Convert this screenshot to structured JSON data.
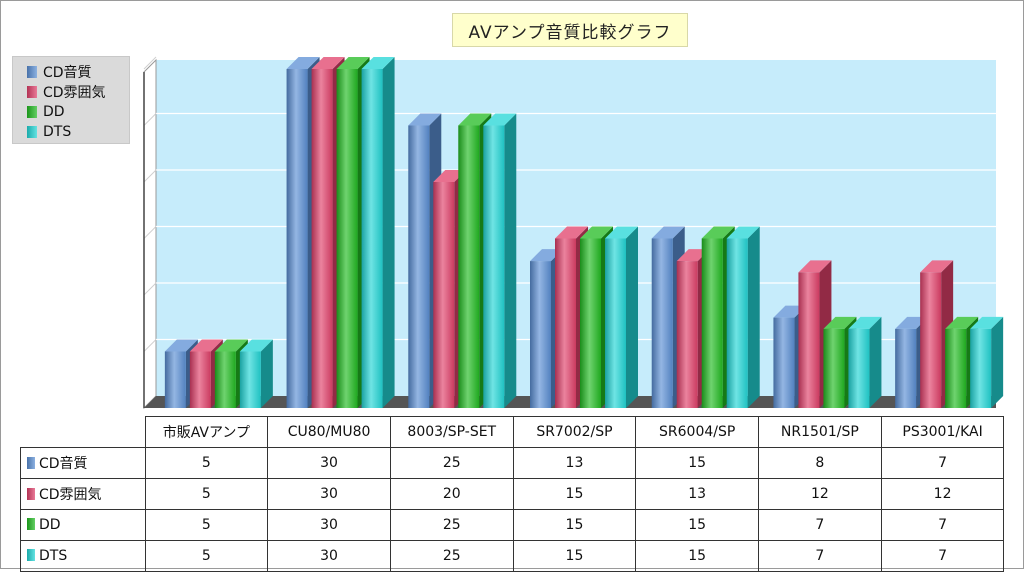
{
  "chart_data": {
    "type": "bar",
    "title": "AVアンプ音質比較グラフ",
    "categories": [
      "市販AVアンプ",
      "CU80/MU80",
      "8003/SP-SET",
      "SR7002/SP",
      "SR6004/SP",
      "NR1501/SP",
      "PS3001/KAI"
    ],
    "series": [
      {
        "name": "CD音質",
        "color": "#5b8fd4",
        "values": [
          5,
          30,
          25,
          13,
          15,
          8,
          7
        ]
      },
      {
        "name": "CD雰囲気",
        "color": "#e0406a",
        "values": [
          5,
          30,
          20,
          15,
          13,
          12,
          12
        ]
      },
      {
        "name": "DD",
        "color": "#22bb22",
        "values": [
          5,
          30,
          25,
          15,
          15,
          7,
          7
        ]
      },
      {
        "name": "DTS",
        "color": "#22d6d6",
        "values": [
          5,
          30,
          25,
          15,
          15,
          7,
          7
        ]
      }
    ],
    "ylim": [
      0,
      30
    ],
    "grid": true,
    "legend": "top-left",
    "style": "3d"
  }
}
